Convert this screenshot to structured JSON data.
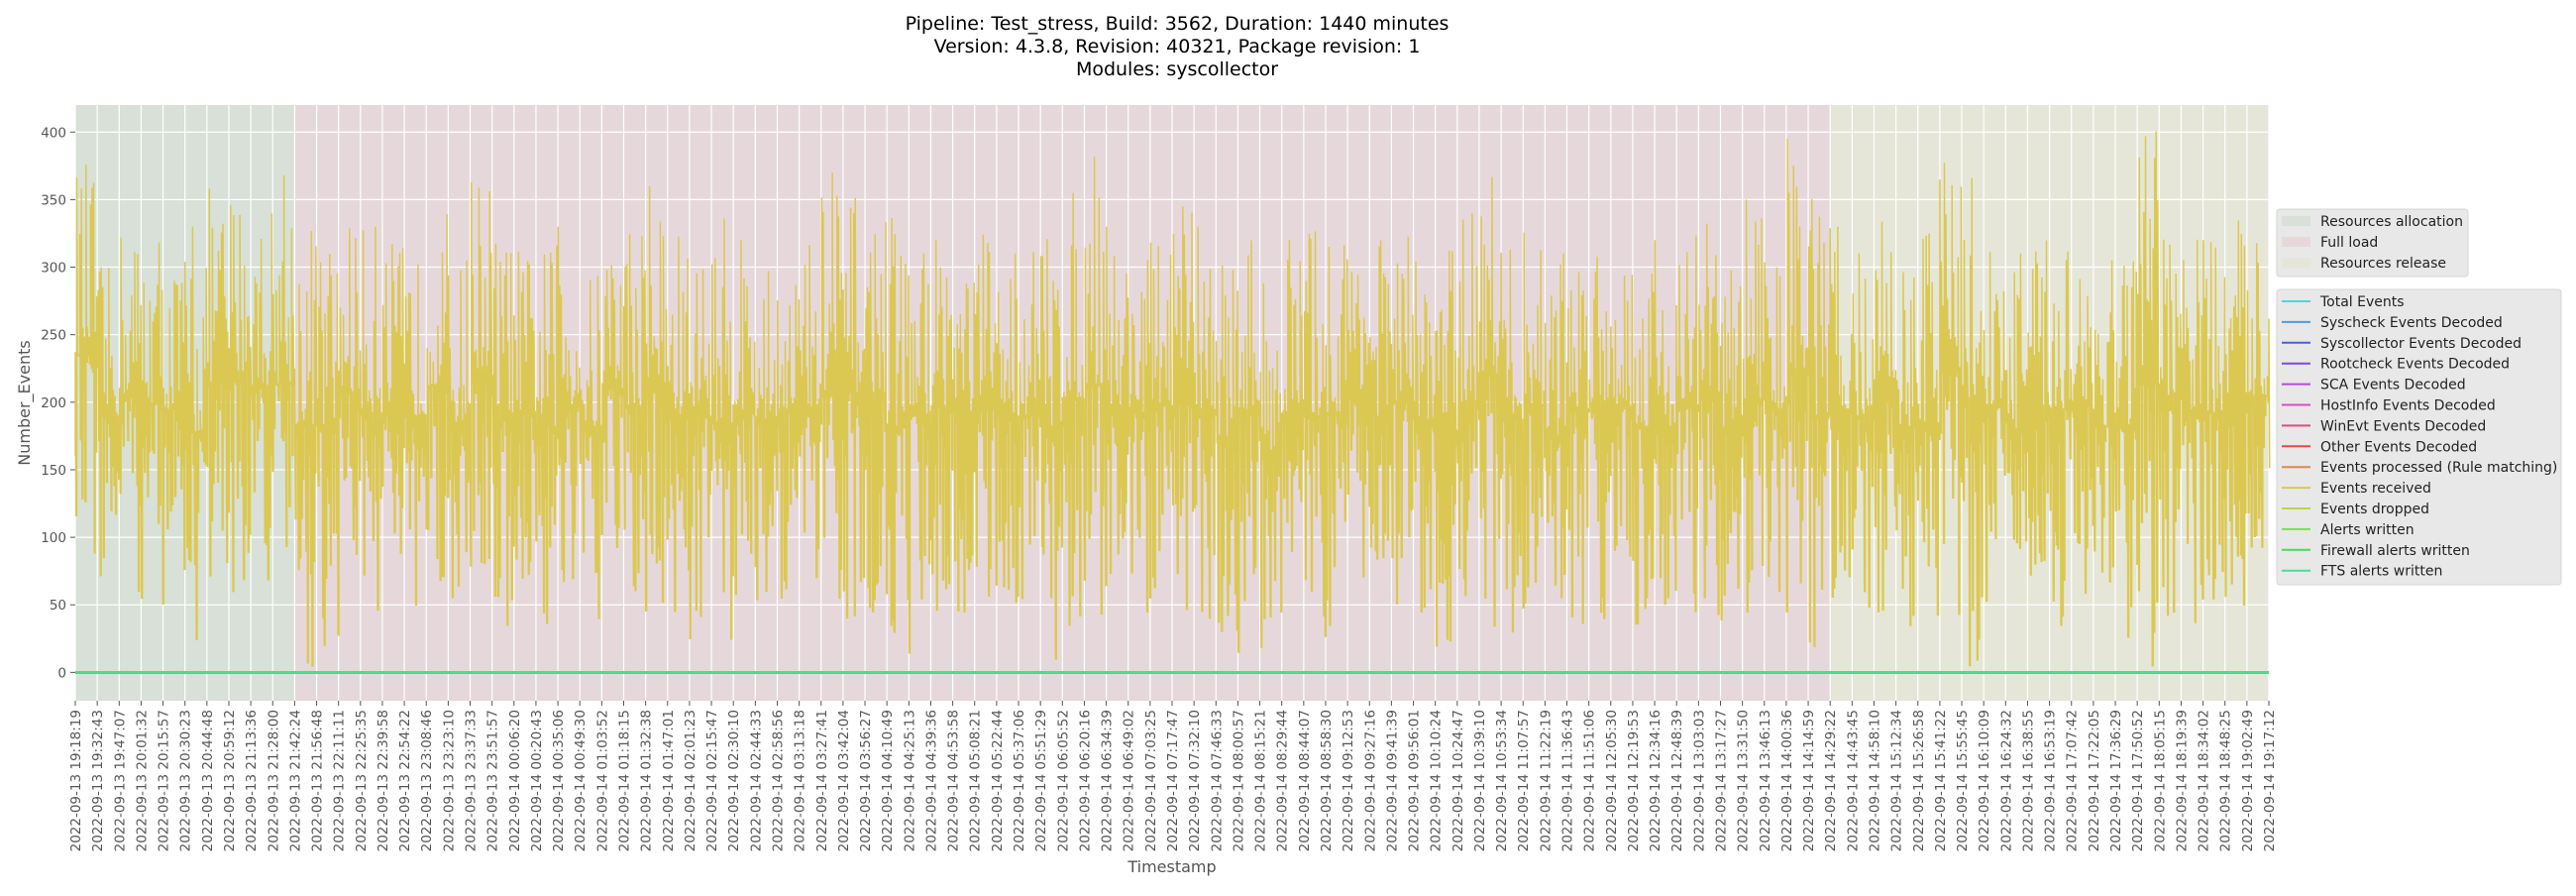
{
  "chart_data": {
    "type": "line",
    "title": [
      "Pipeline: Test_stress, Build: 3562, Duration: 1440 minutes",
      "Version: 4.3.8, Revision: 40321, Package revision: 1",
      "Modules: syscollector"
    ],
    "xlabel": "Timestamp",
    "ylabel": "Number_Events",
    "ylim": [
      -21,
      420
    ],
    "yticks": [
      0,
      50,
      100,
      150,
      200,
      250,
      300,
      350,
      400
    ],
    "grid": true,
    "xticks": [
      "2022-09-13 19:18:19",
      "2022-09-13 19:32:43",
      "2022-09-13 19:47:07",
      "2022-09-13 20:01:32",
      "2022-09-13 20:15:57",
      "2022-09-13 20:30:23",
      "2022-09-13 20:44:48",
      "2022-09-13 20:59:12",
      "2022-09-13 21:13:36",
      "2022-09-13 21:28:00",
      "2022-09-13 21:42:24",
      "2022-09-13 21:56:48",
      "2022-09-13 22:11:11",
      "2022-09-13 22:25:35",
      "2022-09-13 22:39:58",
      "2022-09-13 22:54:22",
      "2022-09-13 23:08:46",
      "2022-09-13 23:23:10",
      "2022-09-13 23:37:33",
      "2022-09-13 23:51:57",
      "2022-09-14 00:06:20",
      "2022-09-14 00:20:43",
      "2022-09-14 00:35:06",
      "2022-09-14 00:49:30",
      "2022-09-14 01:03:52",
      "2022-09-14 01:18:15",
      "2022-09-14 01:32:38",
      "2022-09-14 01:47:01",
      "2022-09-14 02:01:23",
      "2022-09-14 02:15:47",
      "2022-09-14 02:30:10",
      "2022-09-14 02:44:33",
      "2022-09-14 02:58:56",
      "2022-09-14 03:13:18",
      "2022-09-14 03:27:41",
      "2022-09-14 03:42:04",
      "2022-09-14 03:56:27",
      "2022-09-14 04:10:49",
      "2022-09-14 04:25:13",
      "2022-09-14 04:39:36",
      "2022-09-14 04:53:58",
      "2022-09-14 05:08:21",
      "2022-09-14 05:22:44",
      "2022-09-14 05:37:06",
      "2022-09-14 05:51:29",
      "2022-09-14 06:05:52",
      "2022-09-14 06:20:16",
      "2022-09-14 06:34:39",
      "2022-09-14 06:49:02",
      "2022-09-14 07:03:25",
      "2022-09-14 07:17:47",
      "2022-09-14 07:32:10",
      "2022-09-14 07:46:33",
      "2022-09-14 08:00:57",
      "2022-09-14 08:15:21",
      "2022-09-14 08:29:44",
      "2022-09-14 08:44:07",
      "2022-09-14 08:58:30",
      "2022-09-14 09:12:53",
      "2022-09-14 09:27:16",
      "2022-09-14 09:41:39",
      "2022-09-14 09:56:01",
      "2022-09-14 10:10:24",
      "2022-09-14 10:24:47",
      "2022-09-14 10:39:10",
      "2022-09-14 10:53:34",
      "2022-09-14 11:07:57",
      "2022-09-14 11:22:19",
      "2022-09-14 11:36:43",
      "2022-09-14 11:51:06",
      "2022-09-14 12:05:30",
      "2022-09-14 12:19:53",
      "2022-09-14 12:34:16",
      "2022-09-14 12:48:39",
      "2022-09-14 13:03:03",
      "2022-09-14 13:17:27",
      "2022-09-14 13:31:50",
      "2022-09-14 13:46:13",
      "2022-09-14 14:00:36",
      "2022-09-14 14:14:59",
      "2022-09-14 14:29:22",
      "2022-09-14 14:43:45",
      "2022-09-14 14:58:10",
      "2022-09-14 15:12:34",
      "2022-09-14 15:26:58",
      "2022-09-14 15:41:22",
      "2022-09-14 15:55:45",
      "2022-09-14 16:10:09",
      "2022-09-14 16:24:32",
      "2022-09-14 16:38:55",
      "2022-09-14 16:53:19",
      "2022-09-14 17:07:42",
      "2022-09-14 17:22:05",
      "2022-09-14 17:36:29",
      "2022-09-14 17:50:52",
      "2022-09-14 18:05:15",
      "2022-09-14 18:19:39",
      "2022-09-14 18:34:02",
      "2022-09-14 18:48:25",
      "2022-09-14 19:02:49",
      "2022-09-14 19:17:12"
    ],
    "phases": [
      {
        "name": "Resources allocation",
        "start_tick": 0,
        "end_tick": 10,
        "color": "#d8e0d8"
      },
      {
        "name": "Full load",
        "start_tick": 10,
        "end_tick": 80,
        "color": "#e6d8da"
      },
      {
        "name": "Resources release",
        "start_tick": 80,
        "end_tick": 100,
        "color": "#e6e6d8"
      }
    ],
    "series": [
      {
        "name": "Total Events",
        "color": "#4dd8d8",
        "constant": 0
      },
      {
        "name": "Syscheck Events Decoded",
        "color": "#4a9de0",
        "constant": 0
      },
      {
        "name": "Syscollector Events Decoded",
        "color": "#4a5ee0",
        "constant": 0
      },
      {
        "name": "Rootcheck Events Decoded",
        "color": "#7a4ae0",
        "constant": 0
      },
      {
        "name": "SCA Events Decoded",
        "color": "#b84ae0",
        "constant": 0
      },
      {
        "name": "HostInfo Events Decoded",
        "color": "#e04ac8",
        "constant": 0
      },
      {
        "name": "WinEvt Events Decoded",
        "color": "#e04a80",
        "constant": 0
      },
      {
        "name": "Other Events Decoded",
        "color": "#e04a4a",
        "constant": 0
      },
      {
        "name": "Events processed (Rule matching)",
        "color": "#e0884a",
        "constant": 0
      },
      {
        "name": "Events received",
        "color": "#dbc852",
        "interval_max": [
          380,
          300,
          335,
          335,
          310,
          330,
          360,
          365,
          350,
          368,
          345,
          325,
          340,
          330,
          320,
          310,
          345,
          305,
          375,
          330,
          315,
          320,
          330,
          300,
          340,
          345,
          360,
          330,
          320,
          340,
          320,
          300,
          315,
          325,
          370,
          355,
          350,
          340,
          310,
          345,
          320,
          330,
          310,
          325,
          335,
          355,
          392,
          330,
          320,
          325,
          345,
          330,
          315,
          325,
          300,
          320,
          335,
          330,
          370,
          320,
          330,
          310,
          320,
          340,
          398,
          325,
          330,
          310,
          335,
          340,
          325,
          310,
          320,
          330,
          345,
          315,
          350,
          325,
          398,
          360,
          330,
          320,
          350,
          315,
          325,
          390,
          380,
          330,
          310,
          320,
          335,
          330,
          305,
          325,
          402,
          345,
          330,
          320,
          340,
          330
        ],
        "interval_min": [
          70,
          60,
          55,
          45,
          60,
          5,
          50,
          60,
          55,
          40,
          2,
          20,
          55,
          35,
          40,
          50,
          60,
          45,
          55,
          35,
          50,
          25,
          45,
          40,
          60,
          30,
          35,
          25,
          40,
          10,
          45,
          50,
          55,
          35,
          20,
          40,
          45,
          5,
          50,
          30,
          45,
          40,
          50,
          35,
          10,
          30,
          15,
          40,
          45,
          50,
          30,
          40,
          15,
          45,
          10,
          40,
          25,
          35,
          30,
          40,
          50,
          45,
          15,
          40,
          25,
          30,
          45,
          20,
          35,
          40,
          50,
          35,
          25,
          45,
          40,
          20,
          35,
          45,
          30,
          0,
          40,
          35,
          45,
          30,
          25,
          40,
          5,
          45,
          30,
          40,
          35,
          50,
          40,
          20,
          5,
          40,
          35,
          45,
          50,
          60
        ]
      },
      {
        "name": "Events dropped",
        "color": "#b8d84a",
        "constant": 0
      },
      {
        "name": "Alerts written",
        "color": "#78e04a",
        "constant": 0
      },
      {
        "name": "Firewall alerts written",
        "color": "#4ad860",
        "constant": 0
      },
      {
        "name": "FTS alerts written",
        "color": "#4adc98",
        "constant": 0
      }
    ],
    "legend_placement": "right"
  }
}
